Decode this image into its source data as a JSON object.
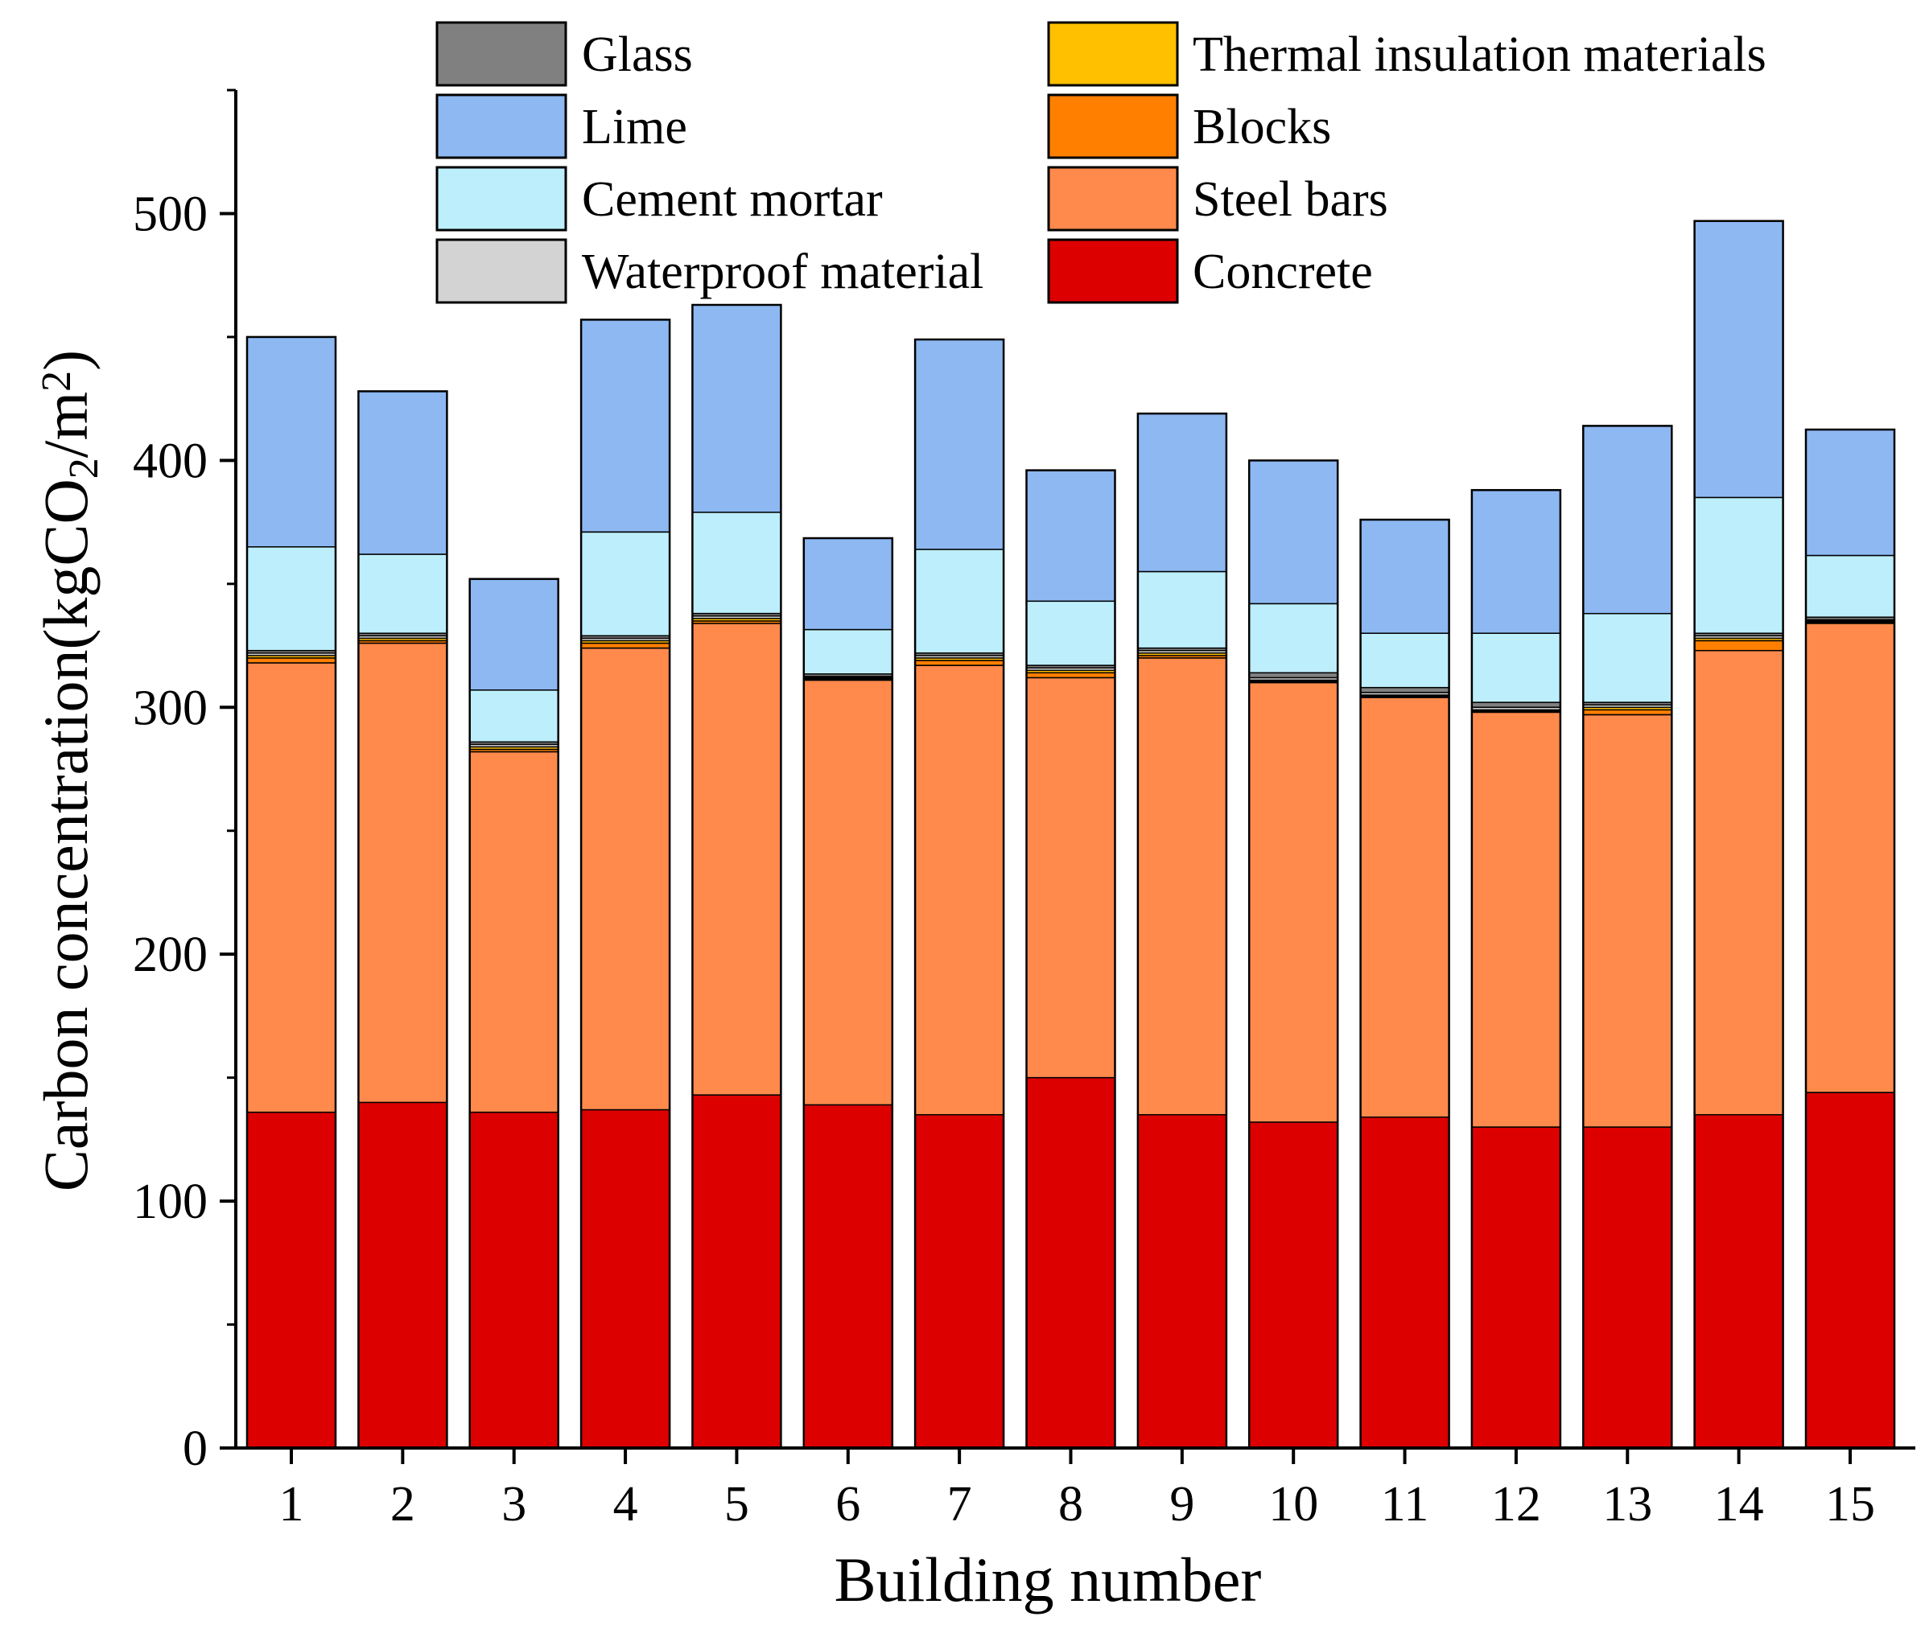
{
  "chart_data": {
    "type": "bar",
    "stacked": true,
    "title": "",
    "xlabel": "Building number",
    "ylabel_parts": {
      "prefix": "Carbon concentration(kgCO",
      "sub": "2",
      "middle": "/m",
      "sup": "2",
      "suffix": ")"
    },
    "ylim": [
      0,
      550
    ],
    "yticks": [
      0,
      100,
      200,
      300,
      400,
      500
    ],
    "categories": [
      "1",
      "2",
      "3",
      "4",
      "5",
      "6",
      "7",
      "8",
      "9",
      "10",
      "11",
      "12",
      "13",
      "14",
      "15"
    ],
    "series": [
      {
        "name": "Concrete",
        "color": "#dd0000",
        "values": [
          136,
          140,
          136,
          137,
          143,
          139,
          135,
          150,
          135,
          132,
          134,
          130,
          130,
          135,
          144
        ]
      },
      {
        "name": "Steel bars",
        "color": "#ff8a4c",
        "values": [
          182,
          186,
          146,
          187,
          191,
          172,
          182,
          162,
          185,
          178,
          170,
          168,
          167,
          188,
          190
        ]
      },
      {
        "name": "Blocks",
        "color": "#ff7f00",
        "values": [
          2,
          1,
          1,
          2,
          1,
          0.5,
          2,
          2,
          1,
          0.5,
          0.5,
          0.5,
          2,
          4,
          0.5
        ]
      },
      {
        "name": "Thermal insulation materials",
        "color": "#ffc000",
        "values": [
          1,
          1,
          1,
          1,
          1,
          0.5,
          1,
          1,
          1,
          0.5,
          0.5,
          0.5,
          1,
          1,
          0.5
        ]
      },
      {
        "name": "Waterproof material",
        "color": "#d3d3d3",
        "values": [
          1,
          1,
          1,
          1,
          1,
          0.5,
          1,
          1,
          1,
          1,
          1,
          1,
          1,
          1,
          0.5
        ]
      },
      {
        "name": "Glass",
        "color": "#808080",
        "values": [
          1,
          1,
          1,
          1,
          1,
          1,
          1,
          1,
          1,
          2,
          2,
          2,
          1,
          1,
          1
        ]
      },
      {
        "name": "Cement mortar",
        "color": "#bdeefb",
        "values": [
          42,
          32,
          21,
          42,
          41,
          18,
          42,
          26,
          31,
          28,
          22,
          28,
          36,
          55,
          25
        ]
      },
      {
        "name": "Lime",
        "color": "#8db8f2",
        "values": [
          85,
          66,
          45,
          86,
          84,
          37,
          85,
          53,
          64,
          58,
          46,
          58,
          76,
          112,
          51
        ]
      }
    ],
    "legend": {
      "position": "top",
      "left_column": [
        "Glass",
        "Lime",
        "Cement mortar",
        "Waterproof material"
      ],
      "right_column": [
        "Thermal insulation materials",
        "Blocks",
        "Steel bars",
        "Concrete"
      ]
    }
  }
}
